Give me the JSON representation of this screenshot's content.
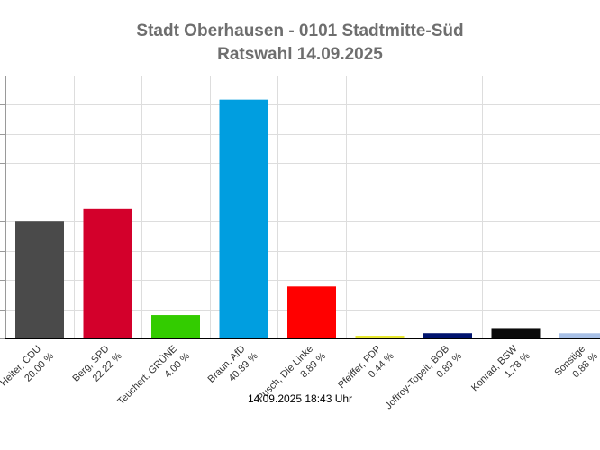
{
  "title": {
    "line1": "Stadt Oberhausen - 0101 Stadtmitte-Süd",
    "line2": "Ratswahl 14.09.2025"
  },
  "footer": "14.09.2025 18:43 Uhr",
  "chart_data": {
    "type": "bar",
    "categories": [
      "Heiter, CDU",
      "Berg, SPD",
      "Teuchert, GRÜNE",
      "Braun, AfD",
      "Pusch, Die Linke",
      "Pfeiffer, FDP",
      "Joffroy-Topeit, BOB",
      "Konrad, BSW",
      "Sonstige"
    ],
    "values": [
      20.0,
      22.22,
      4.0,
      40.89,
      8.89,
      0.44,
      0.89,
      1.78,
      0.88
    ],
    "value_labels": [
      "20.00 %",
      "22.22 %",
      "4.00 %",
      "40.89 %",
      "8.89 %",
      "0.44 %",
      "0.89 %",
      "1.78 %",
      "0.88 %"
    ],
    "colors": [
      "#4a4a4a",
      "#d3002b",
      "#33cc00",
      "#009ee0",
      "#ff0000",
      "#e8e832",
      "#00146e",
      "#0a0a0a",
      "#a8c0e6"
    ],
    "ylim": [
      0,
      45
    ],
    "grid": true,
    "xlabel": "",
    "ylabel": ""
  }
}
